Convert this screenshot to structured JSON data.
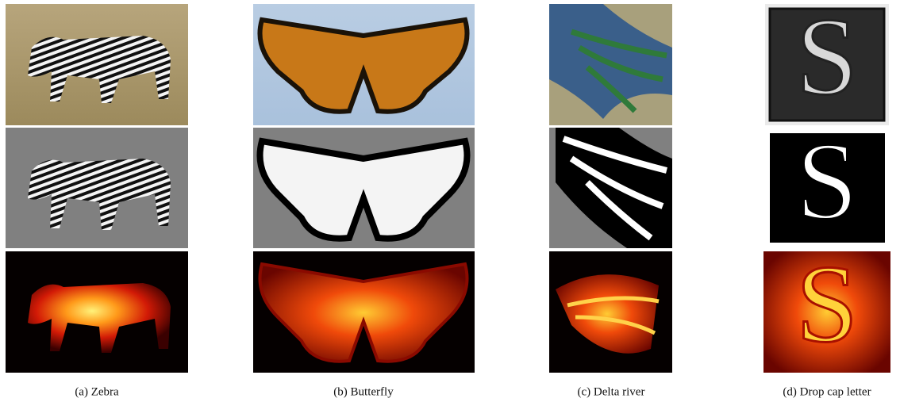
{
  "figure": {
    "panels": [
      {
        "caption": "(a) Zebra"
      },
      {
        "caption": "(b) Butterfly"
      },
      {
        "caption": "(c) Delta river"
      },
      {
        "caption": "(d) Drop cap letter"
      }
    ]
  }
}
